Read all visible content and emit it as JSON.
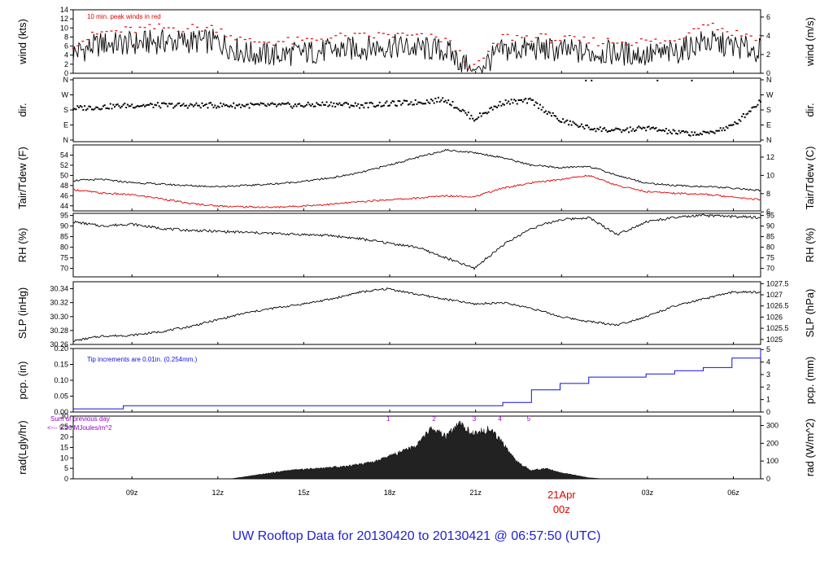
{
  "title": "UW Rooftop Data for 20130420  to  20130421 @ 06:57:50  (UTC)",
  "colors": {
    "frame": "#000000",
    "red": "#e00000",
    "blue": "#1010e0",
    "purple": "#9900cc"
  },
  "x_axis": {
    "ticks": [
      "09z",
      "12z",
      "15z",
      "18z",
      "21z",
      "03z",
      "06z"
    ],
    "date_label": "21Apr",
    "date_sub": "00z"
  },
  "chart_data": [
    {
      "type": "line",
      "name": "wind",
      "ylabel": "wind (kts)",
      "ylabel_right": "wind (m/s)",
      "ylim": [
        0,
        14
      ],
      "yticks": [
        "0",
        "2",
        "4",
        "6",
        "8",
        "10",
        "12",
        "14"
      ],
      "right_ticks": [
        "0",
        "2",
        "4",
        "6"
      ],
      "annotation": "10 min. peak winds in red",
      "x_hours": [
        0,
        1,
        2,
        3,
        4,
        5,
        6,
        7,
        8,
        9,
        10,
        11,
        12,
        13,
        14,
        15,
        16,
        17,
        18,
        19,
        20,
        21,
        22,
        23,
        24
      ],
      "values": [
        4.5,
        6.5,
        6.5,
        7,
        7,
        7,
        4.5,
        4,
        4.5,
        5,
        5.5,
        6,
        5.5,
        5,
        0.5,
        5,
        5.5,
        5,
        4.5,
        4.5,
        4,
        4.5,
        7,
        6,
        5
      ],
      "peaks": [
        6.5,
        9,
        9.5,
        10,
        10,
        10,
        7,
        7,
        7,
        8,
        8,
        8.5,
        8,
        7.5,
        1,
        8,
        8,
        7.5,
        7,
        7,
        7,
        7,
        11.5,
        9,
        8
      ]
    },
    {
      "type": "scatter",
      "name": "direction",
      "ylabel": "dir.",
      "ylabel_right": "dir.",
      "yticks": [
        "N",
        "E",
        "S",
        "W",
        "N"
      ],
      "right_ticks": [
        "N",
        "E",
        "S",
        "W",
        "N"
      ],
      "x_hours": [
        0,
        1,
        2,
        3,
        4,
        5,
        6,
        7,
        8,
        9,
        10,
        11,
        12,
        13,
        14,
        15,
        16,
        17,
        18,
        19,
        20,
        21,
        22,
        23,
        24
      ],
      "values": [
        2.1,
        2.2,
        2.3,
        2.3,
        2.3,
        2.3,
        2.3,
        2.3,
        2.3,
        2.4,
        2.3,
        2.4,
        2.5,
        2.7,
        1.4,
        2.5,
        2.6,
        1.3,
        0.8,
        0.6,
        0.8,
        0.5,
        0.4,
        0.9,
        2.6
      ]
    },
    {
      "type": "line",
      "name": "temperature",
      "ylabel": "Tair/Tdew (F)",
      "ylabel_right": "Tair/Tdew (C)",
      "ylim": [
        43,
        56
      ],
      "yticks": [
        "44",
        "46",
        "48",
        "50",
        "52",
        "54"
      ],
      "right_ticks": [
        "6",
        "8",
        "10",
        "12"
      ],
      "series": [
        {
          "name": "Tair",
          "color": "#000000",
          "x_hours": [
            0,
            1,
            2,
            3,
            4,
            5,
            6,
            7,
            8,
            9,
            10,
            11,
            12,
            13,
            14,
            15,
            16,
            17,
            18,
            19,
            20,
            21,
            22,
            23,
            24
          ],
          "values": [
            49,
            49.2,
            48.6,
            48.3,
            48,
            47.8,
            48,
            48.3,
            48.8,
            49.5,
            50.5,
            52,
            53.5,
            55,
            54.5,
            53.5,
            52,
            51.5,
            51.8,
            50,
            48.5,
            48,
            47.8,
            47.5,
            47
          ]
        },
        {
          "name": "Tdew",
          "color": "#e00000",
          "x_hours": [
            0,
            1,
            2,
            3,
            4,
            5,
            6,
            7,
            8,
            9,
            10,
            11,
            12,
            13,
            14,
            15,
            16,
            17,
            18,
            19,
            20,
            21,
            22,
            23,
            24
          ],
          "values": [
            47.2,
            46.5,
            46.2,
            45.5,
            44.5,
            44,
            43.8,
            43.7,
            44,
            44.3,
            44.8,
            45.2,
            45.5,
            46,
            45.8,
            47.5,
            48.5,
            49.2,
            50,
            48,
            46.8,
            46.5,
            46.3,
            45.8,
            45.2
          ]
        }
      ]
    },
    {
      "type": "line",
      "name": "rh",
      "ylabel": "RH (%)",
      "ylabel_right": "RH (%)",
      "ylim": [
        66,
        96
      ],
      "yticks": [
        "70",
        "75",
        "80",
        "85",
        "90",
        "95"
      ],
      "right_ticks": [
        "70",
        "75",
        "80",
        "85",
        "90",
        "95"
      ],
      "x_hours": [
        0,
        1,
        2,
        3,
        4,
        5,
        6,
        7,
        8,
        9,
        10,
        11,
        12,
        13,
        14,
        15,
        16,
        17,
        18,
        19,
        20,
        21,
        22,
        23,
        24
      ],
      "values": [
        92,
        90,
        91,
        89,
        88,
        87.5,
        87,
        86.5,
        86,
        85.5,
        84,
        82,
        80,
        75,
        70,
        81,
        89,
        93,
        94,
        86,
        92,
        94,
        95,
        94.5,
        94
      ]
    },
    {
      "type": "line",
      "name": "slp",
      "ylabel": "SLP (inHg)",
      "ylabel_right": "SLP (hPa)",
      "ylim": [
        30.26,
        30.35
      ],
      "yticks": [
        "30.26",
        "30.28",
        "30.30",
        "30.32",
        "30.34"
      ],
      "right_ticks": [
        "1025",
        "1025.5",
        "1026",
        "1026.5",
        "1027",
        "1027.5"
      ],
      "x_hours": [
        0,
        1,
        2,
        3,
        4,
        5,
        6,
        7,
        8,
        9,
        10,
        11,
        12,
        13,
        14,
        15,
        16,
        17,
        18,
        19,
        20,
        21,
        22,
        23,
        24
      ],
      "values": [
        30.265,
        30.272,
        30.273,
        30.278,
        30.285,
        30.295,
        30.305,
        30.312,
        30.318,
        30.325,
        30.335,
        30.34,
        30.332,
        30.325,
        30.318,
        30.32,
        30.312,
        30.3,
        30.293,
        30.288,
        30.3,
        30.315,
        30.325,
        30.335,
        30.335
      ]
    },
    {
      "type": "line",
      "name": "precip",
      "ylabel": "pcp. (in)",
      "ylabel_right": "pcp. (mm)",
      "ylim": [
        0,
        0.2
      ],
      "yticks": [
        "0.00",
        "0.05",
        "0.10",
        "0.15",
        "0.20"
      ],
      "right_ticks": [
        "0",
        "1",
        "2",
        "3",
        "4",
        "5"
      ],
      "annotation": "Tip increments are 0.01in. (0.254mm.)",
      "x_hours": [
        0,
        1.5,
        1.75,
        14,
        15,
        16,
        17,
        18,
        19,
        20,
        21,
        22,
        23,
        24
      ],
      "values": [
        0.01,
        0.01,
        0.02,
        0.02,
        0.03,
        0.07,
        0.09,
        0.11,
        0.11,
        0.12,
        0.13,
        0.14,
        0.17,
        0.2
      ]
    },
    {
      "type": "area",
      "name": "radiation",
      "ylabel": "rad(Lgly/hr)",
      "ylabel_right": "rad (W/m^2)",
      "ylim": [
        0,
        30
      ],
      "yticks": [
        "0",
        "5",
        "10",
        "15",
        "20",
        "25",
        "30"
      ],
      "right_ticks": [
        "0",
        "100",
        "200",
        "300"
      ],
      "annotation_lines": [
        "Sum of previous day",
        "<--- 5.26 MJoules/m^2"
      ],
      "hour_markers": [
        "1",
        "2",
        "3",
        "4",
        "5"
      ],
      "x_hours": [
        5.5,
        6.5,
        7.5,
        8.5,
        9.5,
        10.5,
        11.5,
        12,
        12.5,
        13,
        13.5,
        14,
        14.5,
        15,
        15.5,
        16,
        16.5,
        17,
        18,
        18.5
      ],
      "values": [
        0,
        2,
        4,
        5,
        6,
        8,
        13,
        16,
        24,
        20,
        26,
        21,
        24,
        17,
        8,
        4,
        5,
        3,
        0.5,
        0
      ]
    }
  ]
}
